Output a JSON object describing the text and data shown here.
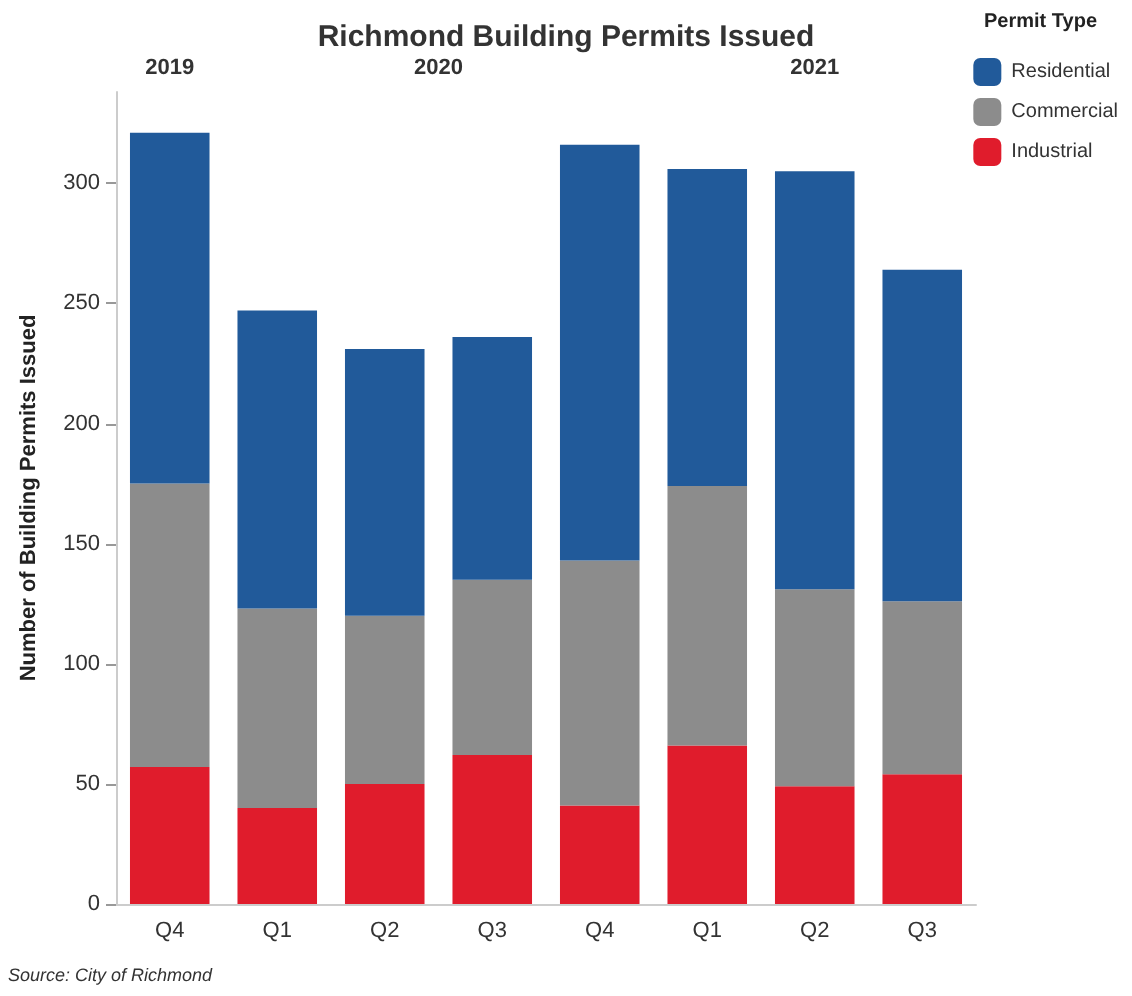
{
  "chart_data": {
    "type": "bar",
    "title": "Richmond Building Permits Issued",
    "ylabel": "Number of Building Permits Issued",
    "legend_title": "Permit Type",
    "legend": "top right",
    "stacked": true,
    "grid": false,
    "categories": [
      "Q4",
      "Q1",
      "Q2",
      "Q3",
      "Q4",
      "Q1",
      "Q2",
      "Q3"
    ],
    "series": [
      {
        "name": "Industrial",
        "color": "#e01c2c",
        "values": [
          57,
          40,
          50,
          62,
          41,
          66,
          49,
          54
        ]
      },
      {
        "name": "Commercial",
        "color": "#8c8c8c",
        "values": [
          118,
          83,
          70,
          73,
          102,
          108,
          82,
          72
        ]
      },
      {
        "name": "Residential",
        "color": "#215a9a",
        "values": [
          146,
          124,
          111,
          101,
          173,
          132,
          174,
          138
        ]
      }
    ],
    "ylim": [
      0,
      338
    ],
    "yticks": [
      0,
      50,
      100,
      150,
      200,
      250,
      300
    ],
    "annotations": [
      "2019",
      "2020",
      "2021",
      "Source: City of Richmond"
    ]
  }
}
